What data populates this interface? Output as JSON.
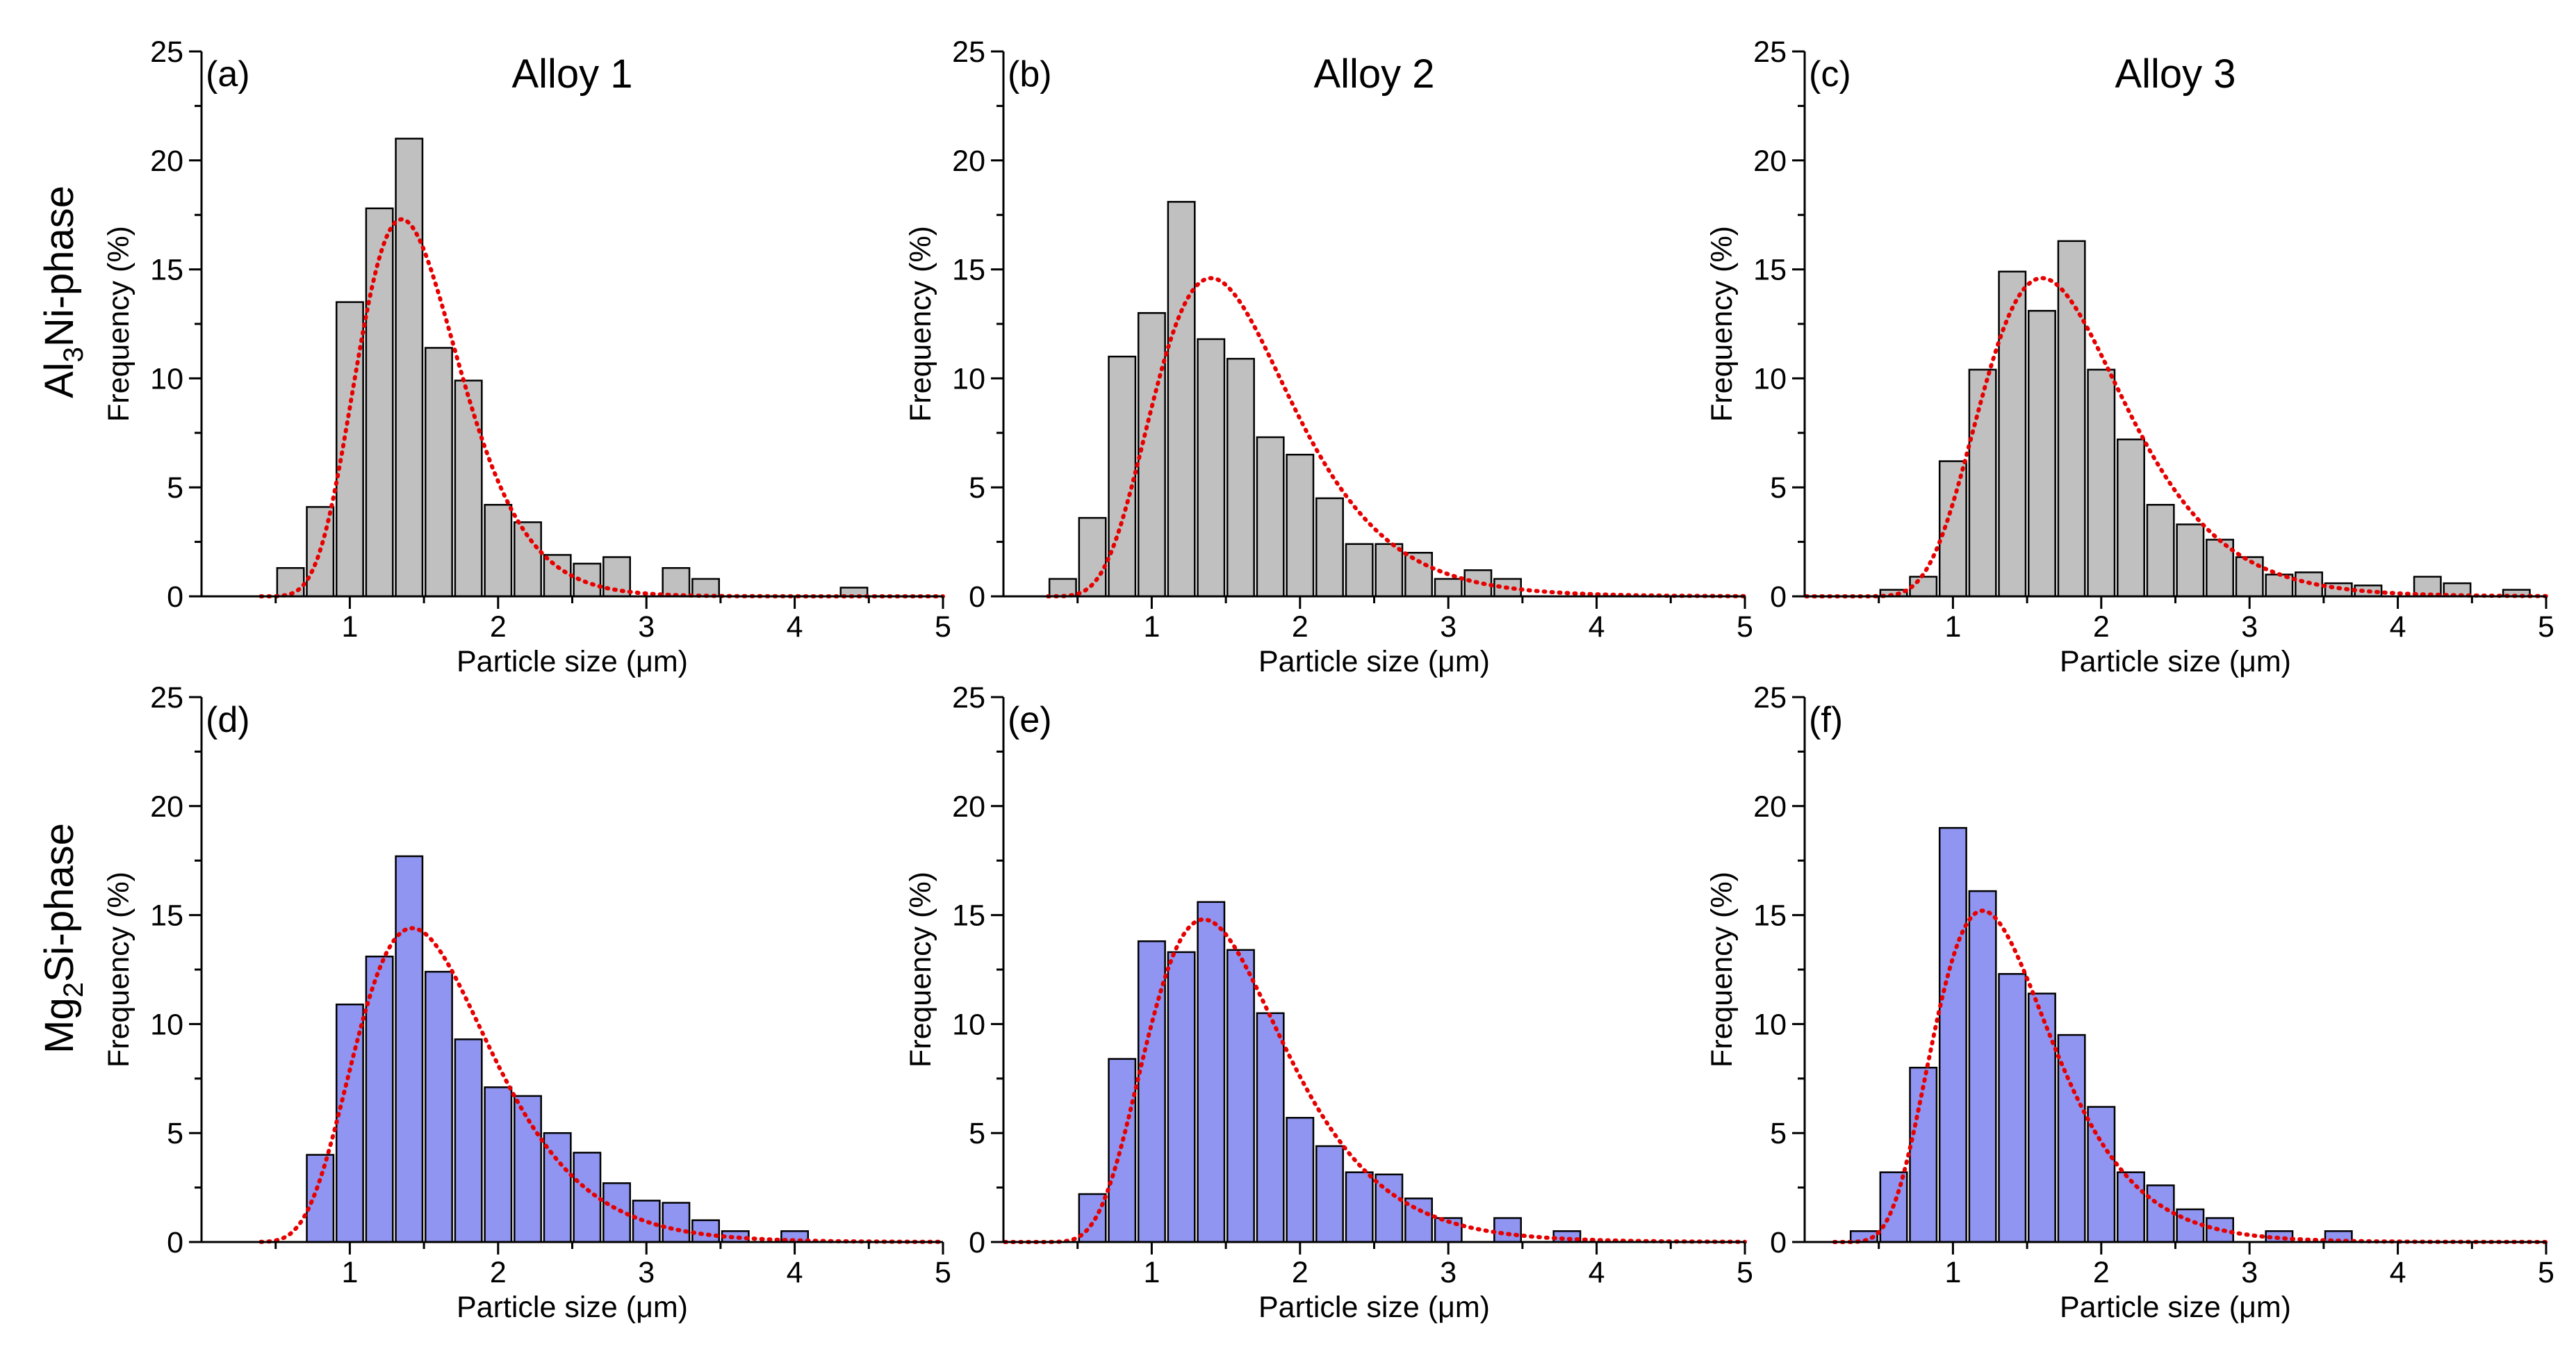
{
  "row_labels": [
    {
      "prefix": "Al",
      "sub": "3",
      "suffix": "Ni-phase"
    },
    {
      "prefix": "Mg",
      "sub": "2",
      "suffix": "Si-phase"
    }
  ],
  "colors": {
    "gray_bar": "#c0c0c0",
    "blue_bar": "#8f95f0",
    "fit_curve": "#e60000"
  },
  "chart_data": [
    {
      "type": "bar",
      "panel": "(a)",
      "title": "Alloy 1",
      "xlabel": "Particle size (μm)",
      "ylabel": "Frequency (%)",
      "xlim": [
        0,
        5
      ],
      "ylim": [
        0,
        25
      ],
      "xticks": [
        1,
        2,
        3,
        4,
        5
      ],
      "yticks": [
        0,
        5,
        10,
        15,
        20,
        25
      ],
      "bar_width": 0.18,
      "bar_color": "gray_bar",
      "x": [
        0.6,
        0.8,
        1.0,
        1.2,
        1.4,
        1.6,
        1.8,
        2.0,
        2.2,
        2.4,
        2.6,
        2.8,
        3.0,
        3.2,
        3.4,
        3.6,
        3.8,
        4.0,
        4.2,
        4.4
      ],
      "values": [
        1.3,
        4.1,
        13.5,
        17.8,
        21.0,
        11.4,
        9.9,
        4.2,
        3.4,
        1.9,
        1.5,
        1.8,
        0,
        1.3,
        0.8,
        0,
        0,
        0,
        0,
        0.4
      ],
      "fit": {
        "type": "lognormal",
        "amplitude": 17.3,
        "mode": 1.35,
        "sigma": 0.255,
        "x_range": [
          0.4,
          5.0
        ]
      }
    },
    {
      "type": "bar",
      "panel": "(b)",
      "title": "Alloy 2",
      "xlabel": "Particle size (μm)",
      "ylabel": "Frequency (%)",
      "xlim": [
        0,
        5
      ],
      "ylim": [
        0,
        25
      ],
      "xticks": [
        1,
        2,
        3,
        4,
        5
      ],
      "yticks": [
        0,
        5,
        10,
        15,
        20,
        25
      ],
      "bar_width": 0.18,
      "bar_color": "gray_bar",
      "x": [
        0.4,
        0.6,
        0.8,
        1.0,
        1.2,
        1.4,
        1.6,
        1.8,
        2.0,
        2.2,
        2.4,
        2.6,
        2.8,
        3.0,
        3.2,
        3.4
      ],
      "values": [
        0.8,
        3.6,
        11.0,
        13.0,
        18.1,
        11.8,
        10.9,
        7.3,
        6.5,
        4.5,
        2.4,
        2.4,
        2.0,
        0.8,
        1.2,
        0.8
      ],
      "fit": {
        "type": "lognormal",
        "amplitude": 14.6,
        "mode": 1.4,
        "sigma": 0.33,
        "x_range": [
          0.3,
          5.0
        ]
      }
    },
    {
      "type": "bar",
      "panel": "(c)",
      "title": "Alloy 3",
      "xlabel": "Particle size (μm)",
      "ylabel": "Frequency (%)",
      "xlim": [
        0,
        5
      ],
      "ylim": [
        0,
        25
      ],
      "xticks": [
        1,
        2,
        3,
        4,
        5
      ],
      "yticks": [
        0,
        5,
        10,
        15,
        20,
        25
      ],
      "bar_width": 0.18,
      "bar_color": "gray_bar",
      "x": [
        0.6,
        0.8,
        1.0,
        1.2,
        1.4,
        1.6,
        1.8,
        2.0,
        2.2,
        2.4,
        2.6,
        2.8,
        3.0,
        3.2,
        3.4,
        3.6,
        3.8,
        4.0,
        4.2,
        4.4,
        4.6,
        4.8
      ],
      "values": [
        0.3,
        0.9,
        6.2,
        10.4,
        14.9,
        13.1,
        16.3,
        10.4,
        7.2,
        4.2,
        3.3,
        2.6,
        1.8,
        1.0,
        1.1,
        0.6,
        0.5,
        0,
        0.9,
        0.6,
        0,
        0.3
      ],
      "fit": {
        "type": "lognormal",
        "amplitude": 14.6,
        "mode": 1.6,
        "sigma": 0.3,
        "x_range": [
          0.0,
          5.0
        ]
      }
    },
    {
      "type": "bar",
      "panel": "(d)",
      "title": "",
      "xlabel": "Particle size (μm)",
      "ylabel": "Frequency (%)",
      "xlim": [
        0,
        5
      ],
      "ylim": [
        0,
        25
      ],
      "xticks": [
        1,
        2,
        3,
        4,
        5
      ],
      "yticks": [
        0,
        5,
        10,
        15,
        20,
        25
      ],
      "bar_width": 0.18,
      "bar_color": "blue_bar",
      "x": [
        0.8,
        1.0,
        1.2,
        1.4,
        1.6,
        1.8,
        2.0,
        2.2,
        2.4,
        2.6,
        2.8,
        3.0,
        3.2,
        3.4,
        3.6,
        3.8,
        4.0
      ],
      "values": [
        4.0,
        10.9,
        13.1,
        17.7,
        12.4,
        9.3,
        7.1,
        6.7,
        5.0,
        4.1,
        2.7,
        1.9,
        1.8,
        1.0,
        0.5,
        0,
        0.5
      ],
      "fit": {
        "type": "lognormal",
        "amplitude": 14.4,
        "mode": 1.42,
        "sigma": 0.32,
        "x_range": [
          0.4,
          5.0
        ]
      }
    },
    {
      "type": "bar",
      "panel": "(e)",
      "title": "",
      "xlabel": "Particle size (μm)",
      "ylabel": "Frequency (%)",
      "xlim": [
        0,
        5
      ],
      "ylim": [
        0,
        25
      ],
      "xticks": [
        1,
        2,
        3,
        4,
        5
      ],
      "yticks": [
        0,
        5,
        10,
        15,
        20,
        25
      ],
      "bar_width": 0.18,
      "bar_color": "blue_bar",
      "x": [
        0.6,
        0.8,
        1.0,
        1.2,
        1.4,
        1.6,
        1.8,
        2.0,
        2.2,
        2.4,
        2.6,
        2.8,
        3.0,
        3.2,
        3.4,
        3.6,
        3.8
      ],
      "values": [
        2.2,
        8.4,
        13.8,
        13.3,
        15.6,
        13.4,
        10.5,
        5.7,
        4.4,
        3.2,
        3.1,
        2.0,
        1.1,
        0,
        1.1,
        0,
        0.5
      ],
      "fit": {
        "type": "lognormal",
        "amplitude": 14.8,
        "mode": 1.35,
        "sigma": 0.34,
        "x_range": [
          0.0,
          5.0
        ]
      }
    },
    {
      "type": "bar",
      "panel": "(f)",
      "title": "",
      "xlabel": "Particle size (μm)",
      "ylabel": "Frequency (%)",
      "xlim": [
        0,
        5
      ],
      "ylim": [
        0,
        25
      ],
      "xticks": [
        1,
        2,
        3,
        4,
        5
      ],
      "yticks": [
        0,
        5,
        10,
        15,
        20,
        25
      ],
      "bar_width": 0.18,
      "bar_color": "blue_bar",
      "x": [
        0.4,
        0.6,
        0.8,
        1.0,
        1.2,
        1.4,
        1.6,
        1.8,
        2.0,
        2.2,
        2.4,
        2.6,
        2.8,
        3.0,
        3.2,
        3.4,
        3.6
      ],
      "values": [
        0.5,
        3.2,
        8.0,
        19.0,
        16.1,
        12.3,
        11.4,
        9.5,
        6.2,
        3.2,
        2.6,
        1.5,
        1.1,
        0,
        0.5,
        0,
        0.5
      ],
      "fit": {
        "type": "lognormal",
        "amplitude": 15.2,
        "mode": 1.2,
        "sigma": 0.33,
        "x_range": [
          0.2,
          5.0
        ]
      }
    }
  ]
}
